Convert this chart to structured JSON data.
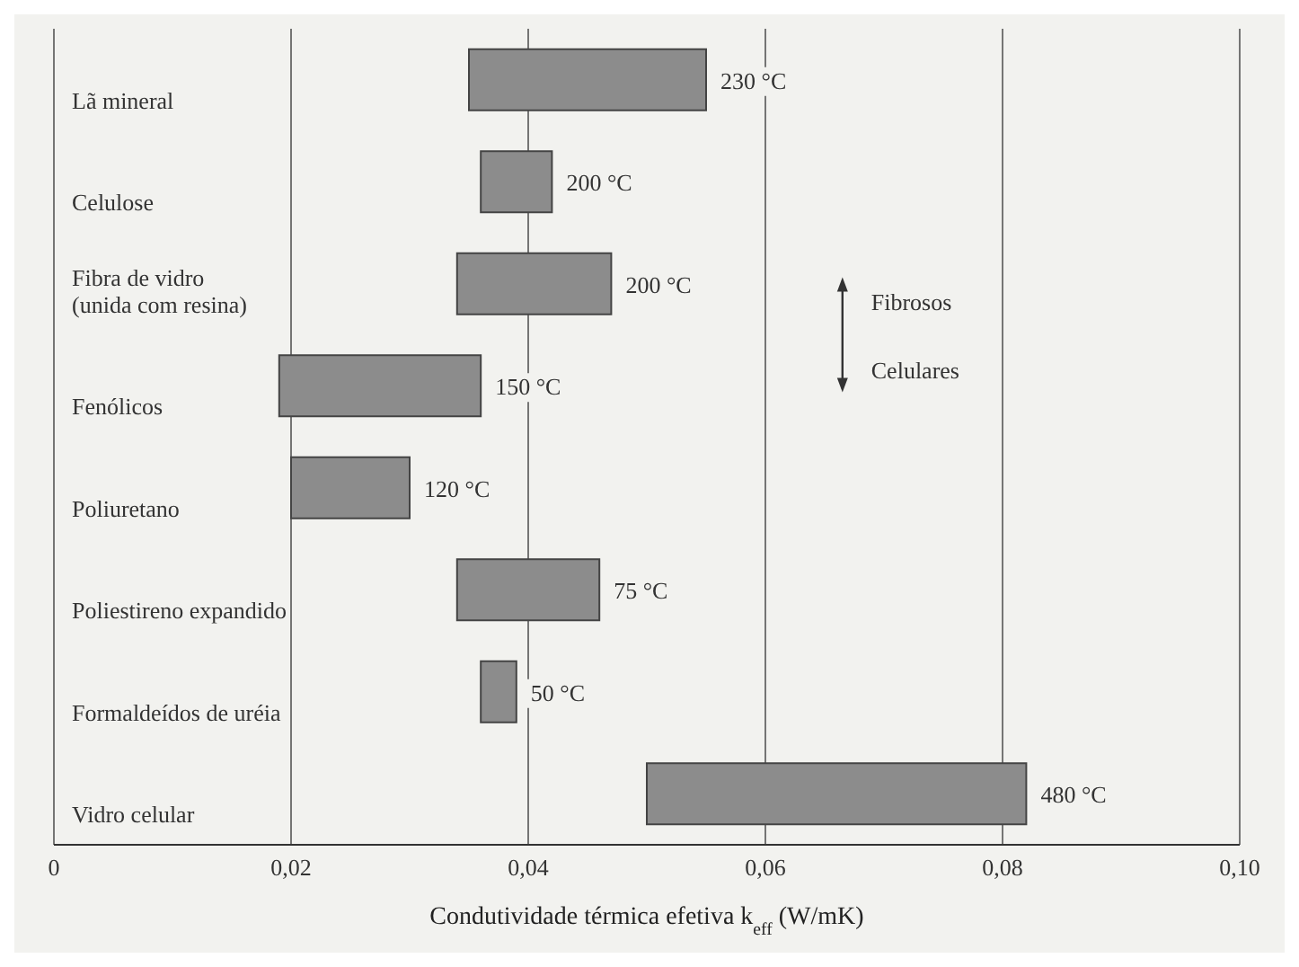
{
  "chart_data": {
    "type": "bar",
    "orientation": "horizontal",
    "categories": [
      "Lã mineral",
      "Celulose",
      "Fibra de vidro (unida com resina)",
      "Fenólicos",
      "Poliuretano",
      "Poliestireno expandido",
      "Formaldeídos de uréia",
      "Vidro celular"
    ],
    "base": [
      0.035,
      0.036,
      0.034,
      0.019,
      0.02,
      0.034,
      0.036,
      0.05
    ],
    "values": [
      0.02,
      0.006,
      0.013,
      0.017,
      0.01,
      0.012,
      0.003,
      0.032
    ],
    "color": "#8c8c8c",
    "xlabel": "Condutividade térmica efetiva k$_{eff}$ (W/mK)",
    "xlim": [
      0,
      0.1
    ],
    "xticks": [
      0,
      {
        "value": 0.02,
        "label": "0,02"
      },
      {
        "value": 0.04,
        "label": "0,04"
      },
      {
        "value": 0.06,
        "label": "0,06"
      },
      {
        "value": 0.08,
        "label": "0,08"
      },
      {
        "value": 0.1,
        "label": "0,10"
      }
    ],
    "grid": "x",
    "annotations": [
      "Fibrosos",
      "Celulares",
      {
        "text": "230 °C",
        "x": 0.055,
        "y": "Lã mineral"
      },
      {
        "text": "200 °C",
        "x": 0.042,
        "y": "Celulose"
      },
      {
        "text": "200 °C",
        "x": 0.047,
        "y": "Fibra de vidro (unida com resina)"
      },
      {
        "text": "150 °C",
        "x": 0.036,
        "y": "Fenólicos"
      },
      {
        "text": "120 °C",
        "x": 0.03,
        "y": "Poliuretano"
      },
      {
        "text": "75 °C",
        "x": 0.046,
        "y": "Poliestireno expandido"
      },
      {
        "text": "50 °C",
        "x": 0.039,
        "y": "Formaldeídos de uréia"
      },
      {
        "text": "480 °C",
        "x": 0.082,
        "y": "Vidro celular"
      }
    ]
  }
}
